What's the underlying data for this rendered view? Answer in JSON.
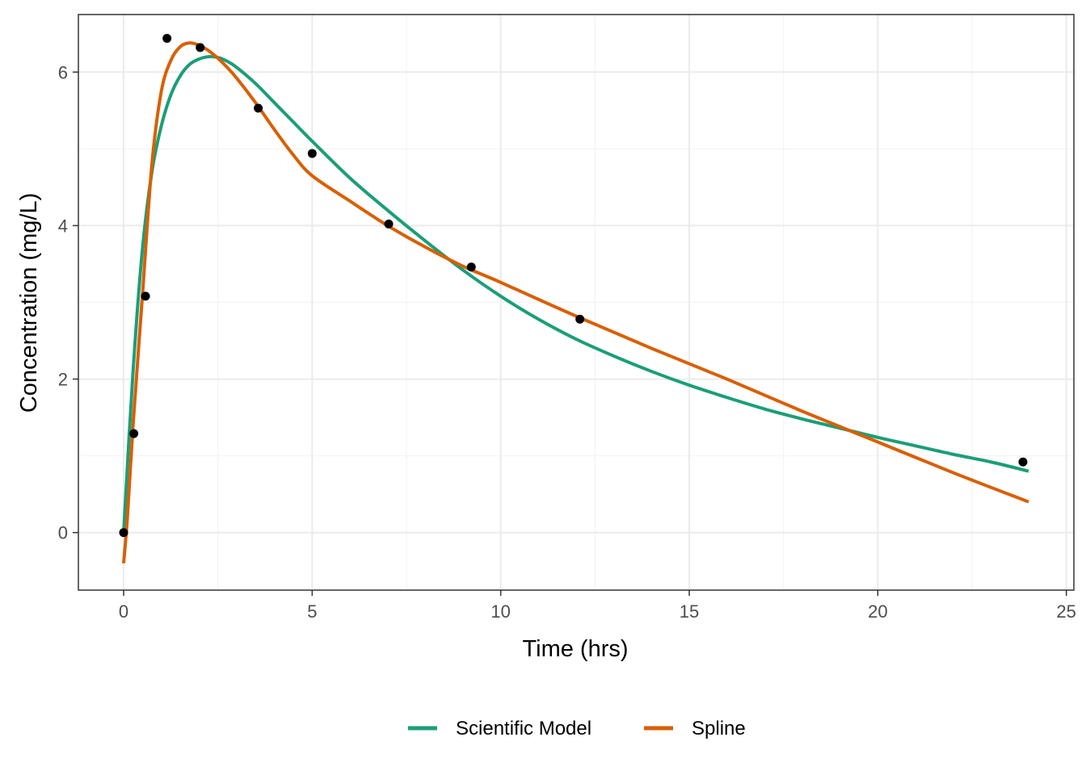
{
  "chart_data": {
    "type": "line",
    "xlabel": "Time (hrs)",
    "ylabel": "Concentration (mg/L)",
    "xlim": [
      -1.2,
      25.2
    ],
    "ylim": [
      -0.75,
      6.75
    ],
    "x_ticks": [
      0,
      5,
      10,
      15,
      20,
      25
    ],
    "y_ticks": [
      0,
      2,
      4,
      6
    ],
    "x_tick_labels": [
      "0",
      "5",
      "10",
      "15",
      "20",
      "25"
    ],
    "y_tick_labels": [
      "0",
      "2",
      "4",
      "6"
    ],
    "grid": true,
    "legend_position": "bottom",
    "observations": {
      "color": "#000000",
      "x": [
        0.0,
        0.27,
        0.58,
        1.15,
        2.03,
        3.57,
        5.0,
        7.03,
        9.22,
        12.1,
        23.85
      ],
      "y": [
        0.0,
        1.29,
        3.08,
        6.44,
        6.32,
        5.53,
        4.94,
        4.02,
        3.46,
        2.78,
        0.92
      ]
    },
    "series": [
      {
        "name": "Scientific Model",
        "color": "#1b9e77",
        "x": [
          0,
          0.25,
          0.5,
          0.75,
          1.0,
          1.25,
          1.5,
          1.75,
          2.0,
          2.25,
          2.5,
          2.75,
          3.0,
          3.5,
          4.0,
          4.5,
          5.0,
          6.0,
          7.0,
          8.0,
          9.0,
          10.0,
          11.0,
          12.0,
          13.0,
          14.0,
          15.0,
          16.0,
          17.0,
          18.0,
          19.0,
          20.0,
          21.0,
          22.0,
          23.0,
          24.0
        ],
        "y": [
          0,
          2.1,
          3.7,
          4.7,
          5.3,
          5.7,
          5.95,
          6.1,
          6.17,
          6.2,
          6.19,
          6.14,
          6.06,
          5.85,
          5.6,
          5.35,
          5.1,
          4.62,
          4.2,
          3.8,
          3.42,
          3.08,
          2.78,
          2.52,
          2.3,
          2.1,
          1.92,
          1.76,
          1.61,
          1.48,
          1.36,
          1.24,
          1.13,
          1.02,
          0.92,
          0.8
        ]
      },
      {
        "name": "Spline",
        "color": "#d95f02",
        "x": [
          0,
          0.1,
          0.25,
          0.5,
          0.75,
          1.0,
          1.25,
          1.5,
          1.75,
          2.0,
          2.25,
          2.5,
          2.75,
          3.0,
          3.5,
          4.0,
          4.5,
          5.0,
          6.0,
          7.0,
          8.0,
          9.0,
          10.0,
          12.0,
          14.0,
          16.0,
          18.0,
          20.0,
          22.0,
          24.0
        ],
        "y": [
          -0.4,
          0.2,
          1.4,
          3.1,
          4.8,
          5.75,
          6.15,
          6.33,
          6.38,
          6.35,
          6.28,
          6.18,
          6.06,
          5.92,
          5.6,
          5.25,
          4.92,
          4.65,
          4.32,
          4.0,
          3.72,
          3.47,
          3.26,
          2.82,
          2.4,
          2.0,
          1.58,
          1.18,
          0.78,
          0.4
        ]
      }
    ]
  }
}
